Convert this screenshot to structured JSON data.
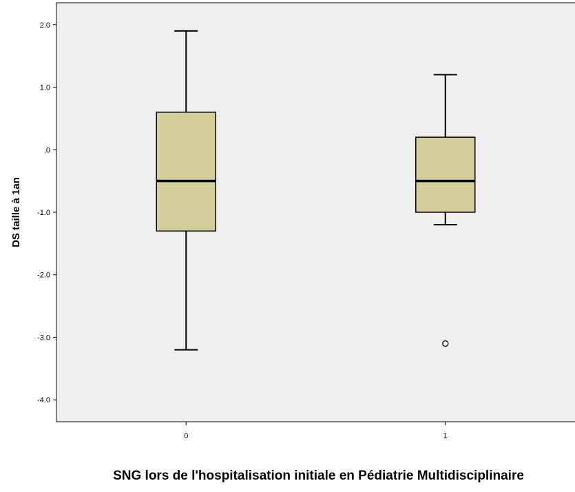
{
  "chart_data": {
    "type": "boxplot",
    "title": "",
    "xlabel": "SNG lors de l'hospitalisation initiale en Pédiatrie Multidisciplinaire",
    "ylabel": "DS taille à 1an",
    "ylim": [
      -4.35,
      2.35
    ],
    "yticks": [
      {
        "value": 2.0,
        "label": "2.0"
      },
      {
        "value": 1.0,
        "label": "1.0"
      },
      {
        "value": 0.0,
        "label": ".0"
      },
      {
        "value": -1.0,
        "label": "-1.0"
      },
      {
        "value": -2.0,
        "label": "-2.0"
      },
      {
        "value": -3.0,
        "label": "-3.0"
      },
      {
        "value": -4.0,
        "label": "-4.0"
      }
    ],
    "categories": [
      "0",
      "1"
    ],
    "boxes": [
      {
        "category": "0",
        "whisker_low": -3.2,
        "q1": -1.3,
        "median": -0.5,
        "q3": 0.6,
        "whisker_high": 1.9,
        "outliers": []
      },
      {
        "category": "1",
        "whisker_low": -1.2,
        "q1": -1.0,
        "median": -0.5,
        "q3": 0.2,
        "whisker_high": 1.2,
        "outliers": [
          -3.1
        ]
      }
    ],
    "grid": false,
    "legend": "none",
    "colors": {
      "plot_background": "#efefef",
      "box_fill": "#d3ce9b",
      "stroke": "#000000"
    }
  }
}
